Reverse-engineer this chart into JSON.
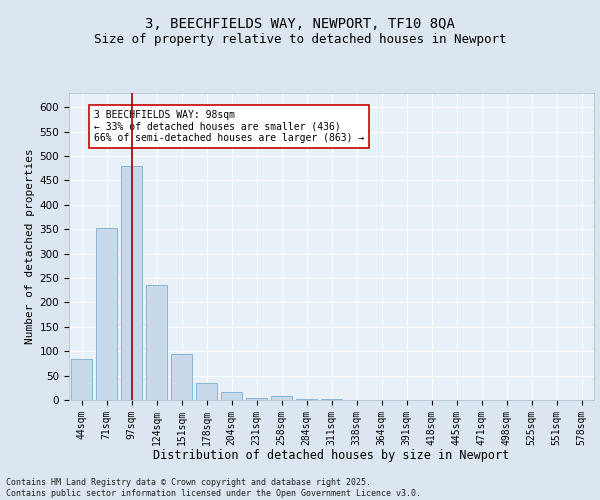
{
  "title1": "3, BEECHFIELDS WAY, NEWPORT, TF10 8QA",
  "title2": "Size of property relative to detached houses in Newport",
  "xlabel": "Distribution of detached houses by size in Newport",
  "ylabel": "Number of detached properties",
  "categories": [
    "44sqm",
    "71sqm",
    "97sqm",
    "124sqm",
    "151sqm",
    "178sqm",
    "204sqm",
    "231sqm",
    "258sqm",
    "284sqm",
    "311sqm",
    "338sqm",
    "364sqm",
    "391sqm",
    "418sqm",
    "445sqm",
    "471sqm",
    "498sqm",
    "525sqm",
    "551sqm",
    "578sqm"
  ],
  "values": [
    85,
    352,
    480,
    235,
    95,
    35,
    16,
    5,
    8,
    3,
    2,
    1,
    1,
    1,
    1,
    1,
    1,
    1,
    1,
    1,
    1
  ],
  "bar_color": "#c8d9ec",
  "bar_edge_color": "#7aafd4",
  "vline_x": 2,
  "vline_color": "#990000",
  "annotation_text": "3 BEECHFIELDS WAY: 98sqm\n← 33% of detached houses are smaller (436)\n66% of semi-detached houses are larger (863) →",
  "annotation_box_color": "#cc0000",
  "ylim": [
    0,
    630
  ],
  "yticks": [
    0,
    50,
    100,
    150,
    200,
    250,
    300,
    350,
    400,
    450,
    500,
    550,
    600
  ],
  "bg_color": "#dce6f0",
  "plot_bg_color": "#e8f0f8",
  "footer": "Contains HM Land Registry data © Crown copyright and database right 2025.\nContains public sector information licensed under the Open Government Licence v3.0.",
  "title1_fontsize": 10,
  "title2_fontsize": 9,
  "xlabel_fontsize": 8.5,
  "ylabel_fontsize": 8,
  "annotation_fontsize": 7,
  "footer_fontsize": 6,
  "tick_fontsize": 7,
  "ytick_fontsize": 7.5
}
